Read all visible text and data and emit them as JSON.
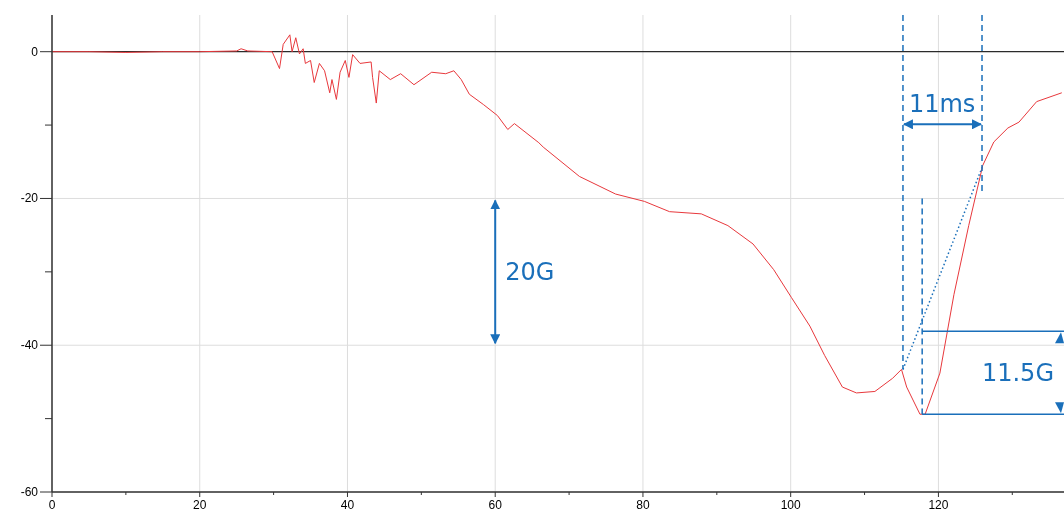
{
  "chart_data": {
    "type": "line",
    "x": [
      0,
      5,
      10,
      15,
      20,
      25,
      25.6,
      26.5,
      29.8,
      30.8,
      31.3,
      32.2,
      32.5,
      33.0,
      33.5,
      34.0,
      34.3,
      35.0,
      35.5,
      36.2,
      36.9,
      37.6,
      37.9,
      38.5,
      39.0,
      39.7,
      40.2,
      40.7,
      41.7,
      43.2,
      43.4,
      43.9,
      44.3,
      45.8,
      47.2,
      49.0,
      51.4,
      53.3,
      54.4,
      55.4,
      56.5,
      58.4,
      60.3,
      61.7,
      62.6,
      65.9,
      66.5,
      71.4,
      76.3,
      80.2,
      83.6,
      87.9,
      91.5,
      94.9,
      97.7,
      100.1,
      102.6,
      104.6,
      107.0,
      108.9,
      111.4,
      113.8,
      115.0,
      115.7,
      117.5,
      118.2,
      120.2,
      122.1,
      124.1,
      126.0,
      127.5,
      129.4,
      130.9,
      133.3,
      136.7
    ],
    "series": [
      {
        "color": "#e8383c",
        "values": [
          0,
          0,
          -0.1,
          0,
          0,
          0.1,
          0.4,
          0.1,
          0,
          -2.3,
          1.0,
          2.3,
          0,
          1.9,
          -0.3,
          0.4,
          -1.6,
          -1.2,
          -4.2,
          -1.6,
          -2.6,
          -5.6,
          -3.8,
          -6.5,
          -2.8,
          -1.2,
          -3.5,
          -0.4,
          -1.6,
          -1.4,
          -3.5,
          -7.0,
          -2.6,
          -3.8,
          -3.0,
          -4.5,
          -2.8,
          -3.0,
          -2.6,
          -3.8,
          -5.8,
          -7.2,
          -8.7,
          -10.6,
          -9.8,
          -12.4,
          -13.0,
          -17.0,
          -19.4,
          -20.4,
          -21.8,
          -22.1,
          -23.7,
          -26.2,
          -29.7,
          -33.5,
          -37.4,
          -41.4,
          -45.7,
          -46.5,
          -46.3,
          -44.5,
          -43.3,
          -45.7,
          -49.4,
          -49.4,
          -43.8,
          -33.1,
          -23.7,
          -15.5,
          -12.3,
          -10.4,
          -9.6,
          -6.8,
          -5.6
        ]
      }
    ],
    "xlim": [
      0,
      137
    ],
    "ylim": [
      -60,
      5
    ],
    "xticks": [
      0,
      {
        "value": 10,
        "label": null
      },
      20,
      {
        "value": 30,
        "label": null
      },
      40,
      {
        "value": 50,
        "label": null
      },
      60,
      {
        "value": 70,
        "label": null
      },
      80,
      {
        "value": 90,
        "label": null
      },
      100,
      {
        "value": 110,
        "label": null
      },
      120,
      {
        "value": 130,
        "label": null
      }
    ],
    "yticks": [
      -60,
      {
        "value": -50,
        "label": null
      },
      -40,
      {
        "value": -30,
        "label": null
      },
      -20,
      {
        "value": -10,
        "label": null
      },
      0
    ],
    "grid": true,
    "ref_lines": [
      {
        "axis": "y",
        "value": 0,
        "color": "#000000"
      }
    ],
    "annotations": [
      "20G",
      "11ms",
      {
        "text": "11.5G",
        "x": 117.8,
        "y": -49.4
      }
    ]
  }
}
